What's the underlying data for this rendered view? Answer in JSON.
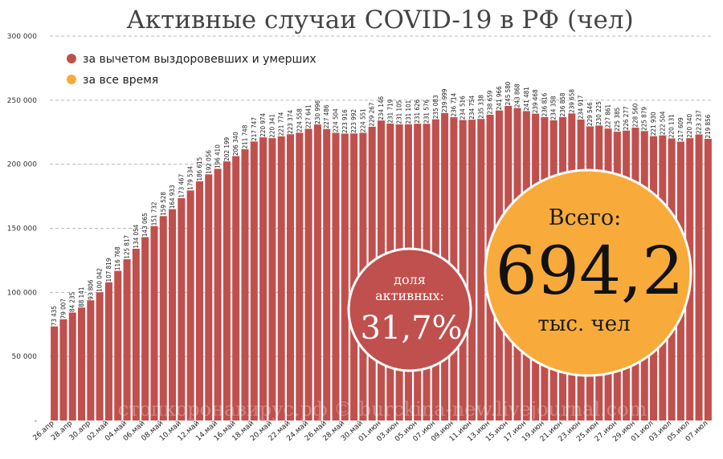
{
  "chart_data": {
    "type": "bar",
    "title": "Активные случаи COVID-19 в РФ (чел)",
    "ylim": [
      0,
      300000
    ],
    "yticks": [
      "300 000",
      "250 000",
      "200 000",
      "150 000",
      "100 000",
      "50 000",
      "-"
    ],
    "grid": true,
    "legend_position": "top-left",
    "legend": [
      {
        "label": "за вычетом выздоровевших и умерших",
        "color": "#c0504d"
      },
      {
        "label": "за все время",
        "color": "#f8ab3a"
      }
    ],
    "x_labels": [
      "26.апр",
      "28.апр",
      "30.апр",
      "02.май",
      "04.май",
      "06.май",
      "08.май",
      "10.май",
      "12.май",
      "14.май",
      "16.май",
      "18.май",
      "20.май",
      "22.май",
      "24.май",
      "26.май",
      "28.май",
      "30.май",
      "01.июн",
      "03.июн",
      "05.июн",
      "07.июн",
      "09.июн",
      "11.июн",
      "13.июн",
      "15.июн",
      "17.июн",
      "19.июн",
      "21.июн",
      "23.июн",
      "25.июн",
      "27.июн",
      "29.июн",
      "01.июл",
      "03.июл",
      "05.июл",
      "07.июл"
    ],
    "series": [
      {
        "name": "за вычетом выздоровевших и умерших",
        "color": "#c0504d",
        "values": [
          73435,
          79007,
          84235,
          88141,
          93806,
          100042,
          107819,
          116768,
          125817,
          134054,
          143065,
          151732,
          159528,
          164933,
          173467,
          179534,
          186615,
          192056,
          196410,
          202199,
          206340,
          211748,
          217747,
          220974,
          220341,
          221774,
          223374,
          224558,
          227641,
          230996,
          227486,
          224504,
          223916,
          223992,
          224551,
          229267,
          234146,
          231719,
          231105,
          231101,
          231626,
          231576,
          235083,
          239999,
          236714,
          234516,
          234754,
          235338,
          238659,
          241966,
          245580,
          243868,
          241481,
          239468,
          236816,
          234358,
          236858,
          239658,
          234917,
          229546,
          230225,
          227861,
          225385,
          226277,
          228560,
          225879,
          221930,
          222504,
          220131,
          217609,
          220340,
          223237,
          219856
        ]
      }
    ],
    "data_labels": [
      "73 435",
      "79 007",
      "84 235",
      "88 141",
      "93 806",
      "100 042",
      "107 819",
      "116 768",
      "125 817",
      "134 054",
      "143 065",
      "151 732",
      "159 528",
      "164 933",
      "173 467",
      "179 534",
      "186 615",
      "192 056",
      "196 410",
      "202 199",
      "206 340",
      "211 748",
      "217 747",
      "220 974",
      "220 341",
      "221 774",
      "223 374",
      "224 558",
      "227 641",
      "230 996",
      "227 486",
      "224 504",
      "223 916",
      "223 992",
      "224 551",
      "229 267",
      "234 146",
      "231 719",
      "231 105",
      "231 101",
      "231 626",
      "231 576",
      "235 083",
      "239 999",
      "236 714",
      "234 516",
      "234 754",
      "235 338",
      "238 659",
      "241 966",
      "245 580",
      "243 868",
      "241 481",
      "239 468",
      "236 816",
      "234 358",
      "236 858",
      "239 658",
      "234 917",
      "229 546",
      "230 225",
      "227 861",
      "225 385",
      "226 277",
      "228 560",
      "225 879",
      "221 930",
      "222 504",
      "220 131",
      "217 609",
      "220 340",
      "223 237",
      "219 856"
    ],
    "annotations": {
      "share": {
        "label_line1": "доля",
        "label_line2": "активных:",
        "value": "31,7%",
        "color": "#c0504d"
      },
      "total": {
        "label_top": "Всего:",
        "value": "694,2",
        "label_bottom": "тыс. чел",
        "color": "#f8ab3a"
      }
    },
    "watermark": "стопкоронавирус.рф © burckina-new.livejournal.com"
  }
}
